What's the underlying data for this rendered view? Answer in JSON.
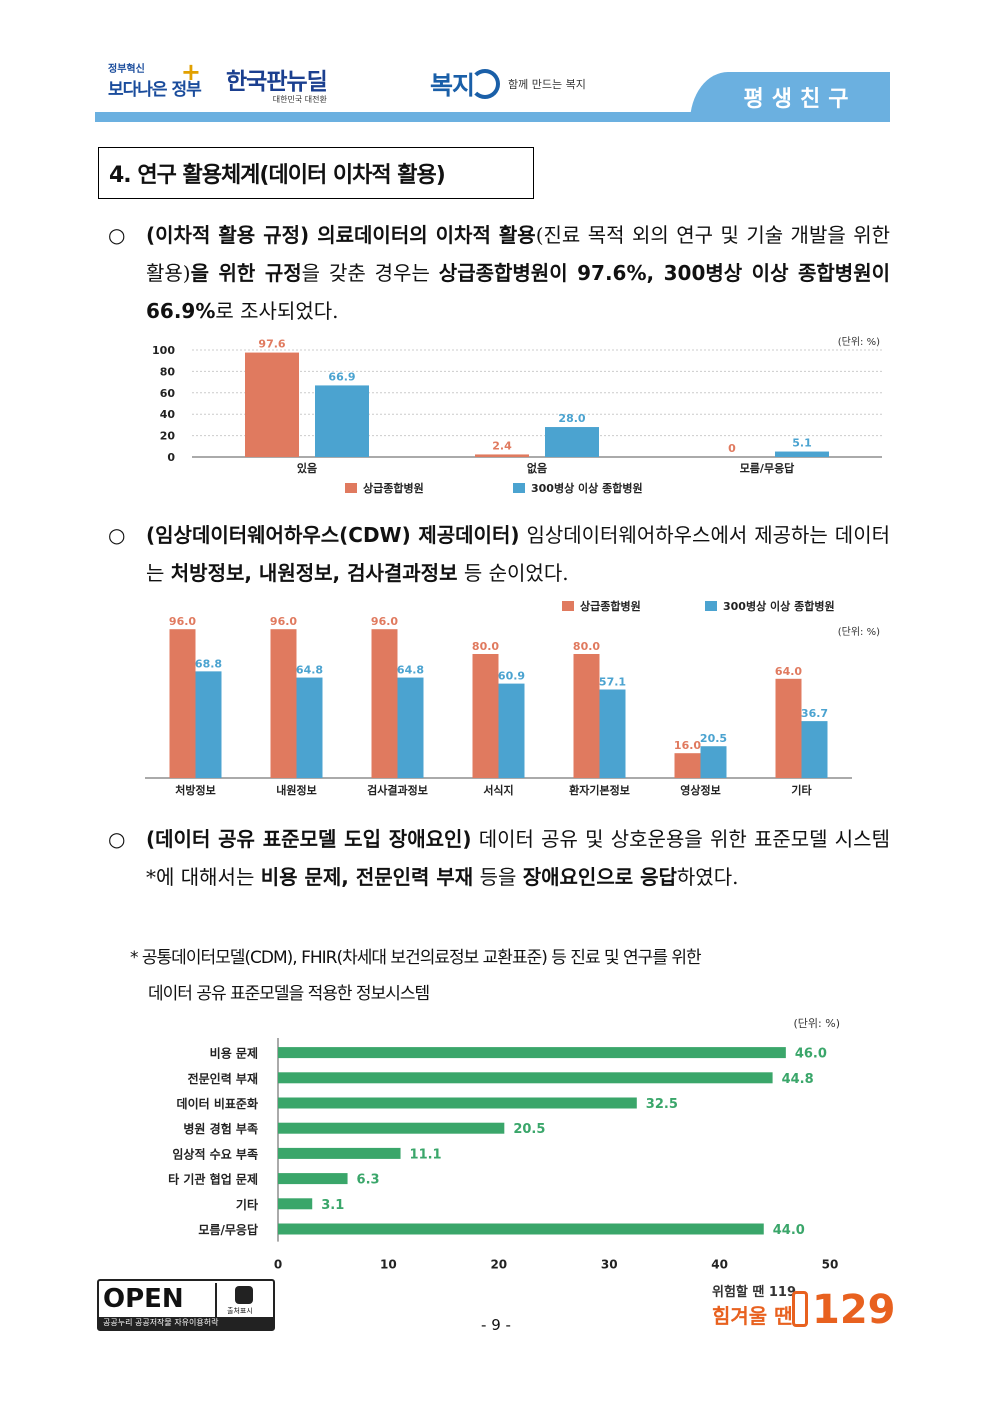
{
  "header": {
    "logo_gov_small": "정부혁신",
    "logo_gov_big": "보다나은 정부",
    "logo_knd_big": "한국판뉴딜",
    "logo_knd_small": "대한민국 대전환",
    "logo_bokji_name": "복지",
    "logo_bokji_slogan": "함께 만드는 복지",
    "tab_label": "평생친구"
  },
  "section_title": "4. 연구 활용체계(데이터 이차적 활용)",
  "para1": {
    "bullet": "○",
    "b1": "(이차적 활용 규정) 의료데이터의 이차적 활용",
    "t1": "(진료 목적 외의 연구 및 기술 개발을 위한 활용)",
    "b2": "을 위한 규정",
    "t2": "을 갖춘 경우는 ",
    "b3": "상급종합병원이 97.6%, 300병상 이상 종합병원이 66.9%",
    "t3": "로 조사되었다."
  },
  "para2": {
    "bullet": "○",
    "b1": "(임상데이터웨어하우스(CDW) 제공데이터)",
    "t1": " 임상데이터웨어하우스에서 제공하는 데이터는 ",
    "b2": "처방정보, 내원정보, 검사결과정보",
    "t2": " 등 순이었다."
  },
  "para3": {
    "bullet": "○",
    "b1": "(데이터 공유 표준모델 도입 장애요인)",
    "t1": " 데이터 공유 및 상호운용을 위한 표준모델 시스템*에 대해서는 ",
    "b2": "비용 문제, 전문인력 부재",
    "t2": " 등을 ",
    "b3": "장애요인으로 응답",
    "t3": "하였다."
  },
  "note": {
    "line1": "* 공통데이터모델(CDM), FHIR(차세대 보건의료정보 교환표준) 등 진료 및 연구를 위한",
    "line2": "데이터 공유 표준모델을 적용한 정보시스템"
  },
  "chart_data": [
    {
      "type": "bar",
      "unit_label": "(단위: %)",
      "categories": [
        "있음",
        "없음",
        "모름/무응답"
      ],
      "series": [
        {
          "name": "상급종합병원",
          "values": [
            97.6,
            2.4,
            0
          ],
          "color": "#e07a5f"
        },
        {
          "name": "300병상 이상 종합병원",
          "values": [
            66.9,
            28.0,
            5.1
          ],
          "color": "#4ba3d0"
        }
      ],
      "value_labels": [
        [
          "97.6",
          "2.4",
          "0"
        ],
        [
          "66.9",
          "28.0",
          "5.1"
        ]
      ],
      "yticks": [
        "0",
        "20",
        "40",
        "60",
        "80",
        "100"
      ],
      "ylim": [
        0,
        100
      ],
      "grid": true,
      "legend": "bottom"
    },
    {
      "type": "bar",
      "unit_label": "(단위: %)",
      "categories": [
        "처방정보",
        "내원정보",
        "검사결과정보",
        "서식지",
        "환자기본정보",
        "영상정보",
        "기타"
      ],
      "series": [
        {
          "name": "상급종합병원",
          "values": [
            96.0,
            96.0,
            96.0,
            80.0,
            80.0,
            16.0,
            64.0
          ],
          "color": "#e07a5f"
        },
        {
          "name": "300병상 이상 종합병원",
          "values": [
            68.8,
            64.8,
            64.8,
            60.9,
            57.1,
            20.5,
            36.7
          ],
          "color": "#4ba3d0"
        }
      ],
      "value_labels": [
        [
          "96.0",
          "96.0",
          "96.0",
          "80.0",
          "80.0",
          "16.0",
          "64.0"
        ],
        [
          "68.8",
          "64.8",
          "64.8",
          "60.9",
          "57.1",
          "20.5",
          "36.7"
        ]
      ],
      "ylim": [
        0,
        100
      ],
      "grid": false,
      "legend": "top-right"
    },
    {
      "type": "bar",
      "orientation": "horizontal",
      "unit_label": "(단위: %)",
      "categories": [
        "비용 문제",
        "전문인력 부재",
        "데이터 비표준화",
        "병원 경험 부족",
        "임상적 수요 부족",
        "타 기관 협업 문제",
        "기타",
        "모름/무응답"
      ],
      "values": [
        46.0,
        44.8,
        32.5,
        20.5,
        11.1,
        6.3,
        3.1,
        44.0
      ],
      "value_labels": [
        "46.0",
        "44.8",
        "32.5",
        "20.5",
        "11.1",
        "6.3",
        "3.1",
        "44.0"
      ],
      "xticks": [
        "0",
        "10",
        "20",
        "30",
        "40",
        "50"
      ],
      "xlim": [
        0,
        50
      ],
      "color": "#3aa66a",
      "grid": false
    }
  ],
  "footer": {
    "open_text": "OPEN",
    "open_icon_label": "출처표시",
    "open_foot": "공공누리  공공저작물 자유이용허락",
    "page_number": "- 9 -",
    "hotline_l1": "위험할 땐 119",
    "hotline_l2": "힘겨울 땐",
    "hotline_num": "129"
  }
}
